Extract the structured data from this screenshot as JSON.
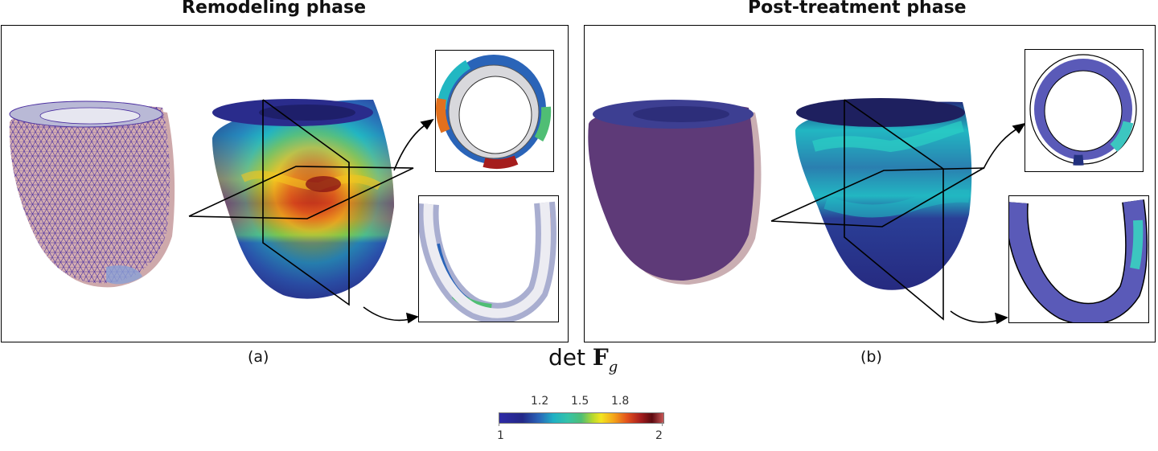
{
  "titles": {
    "left": "Remodeling phase",
    "right": "Post-treatment phase"
  },
  "captions": {
    "left": "(a)",
    "right": "(b)"
  },
  "colorbar": {
    "label_prefix": "det",
    "label_symbol": "F",
    "label_subscript": "g",
    "tick_labels": [
      "1.2",
      "1.5",
      "1.8"
    ],
    "min_label": "1",
    "max_label": "2",
    "min": 1,
    "max": 2,
    "colormap": [
      "#2e2aa6",
      "#1fb1c4",
      "#4fbe74",
      "#f3e520",
      "#e2501d",
      "#5c0a10"
    ]
  },
  "colors": {
    "mesh_fill": "#c9a0a2",
    "mesh_lines": "#4b2fa0",
    "low": "#2a2c8c",
    "mid": "#22b7c2",
    "high": "#a51d1d",
    "post_volume": "#5e3a78"
  }
}
